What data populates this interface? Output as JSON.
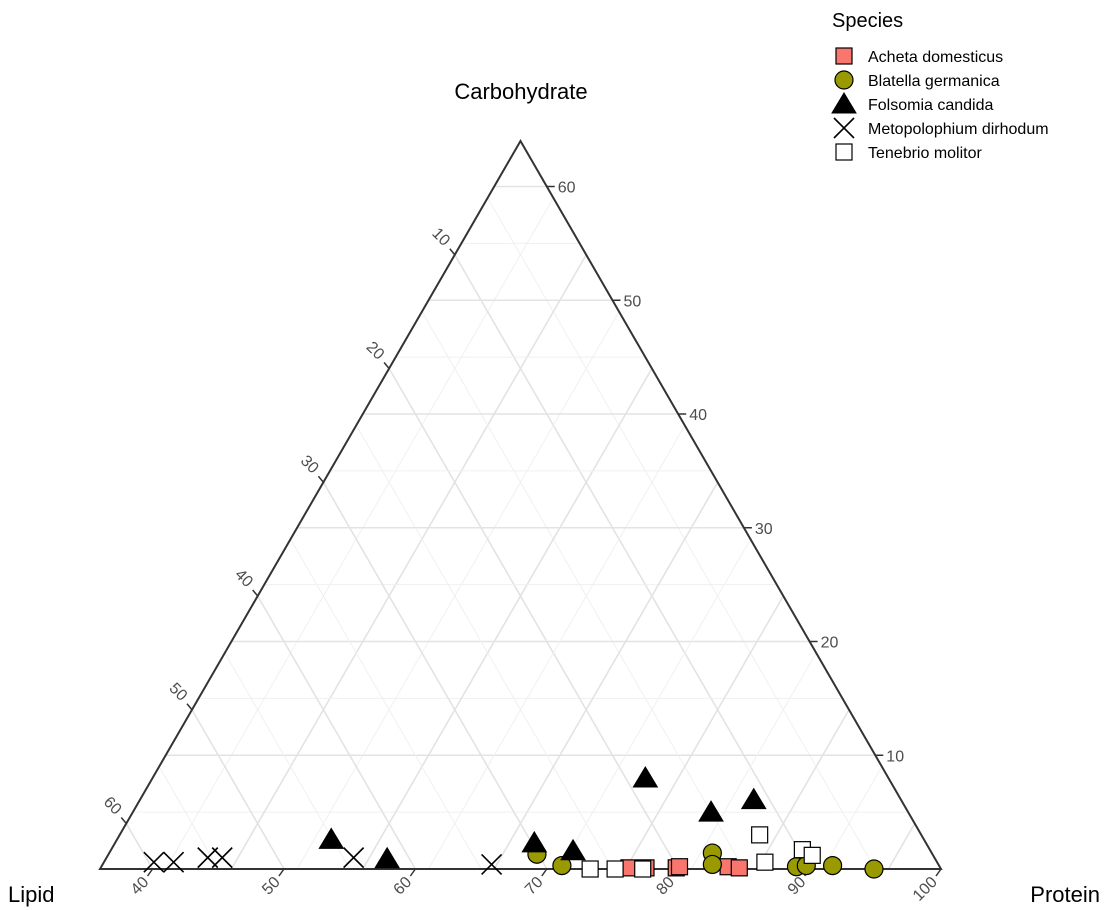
{
  "chart_data": {
    "type": "scatter",
    "subtype": "ternary",
    "axes": {
      "top": {
        "title": "Carbohydrate",
        "ticks": [
          10,
          20,
          30,
          40,
          50,
          60
        ]
      },
      "left": {
        "title": "Lipid",
        "ticks": [
          10,
          20,
          30,
          40,
          50,
          60
        ]
      },
      "right": {
        "title": "Protein",
        "ticks": [
          40,
          50,
          60,
          70,
          80,
          90,
          100
        ]
      }
    },
    "limits": {
      "carbohydrate": [
        0,
        64
      ],
      "lipid": [
        0,
        64
      ],
      "protein": [
        36,
        100
      ]
    },
    "grid": true,
    "legend": {
      "title": "Species",
      "position": "top-right"
    },
    "series": [
      {
        "name": "Acheta domesticus",
        "marker": "square",
        "fill": "#f8766d",
        "stroke": "#000000",
        "points": [
          [
            76.2,
            0.1,
            23.7
          ],
          [
            77.5,
            0.1,
            22.4
          ],
          [
            79.8,
            0.1,
            20.1
          ],
          [
            80.0,
            0.2,
            19.8
          ],
          [
            83.7,
            0.2,
            16.1
          ],
          [
            84.6,
            0.1,
            15.3
          ]
        ]
      },
      {
        "name": "Blatella germanica",
        "marker": "circle",
        "fill": "#999900",
        "stroke": "#000000",
        "points": [
          [
            68.6,
            1.3,
            30.1
          ],
          [
            71.0,
            0.3,
            28.7
          ],
          [
            81.9,
            1.4,
            16.7
          ],
          [
            82.4,
            0.4,
            17.2
          ],
          [
            88.9,
            0.2,
            10.9
          ],
          [
            89.6,
            0.3,
            10.1
          ],
          [
            91.6,
            0.3,
            8.1
          ],
          [
            94.9,
            0.0,
            5.1
          ]
        ]
      },
      {
        "name": "Folsomia candida",
        "marker": "triangle",
        "fill": "#000000",
        "stroke": "#000000",
        "points": [
          [
            52.3,
            2.6,
            45.1
          ],
          [
            57.4,
            0.9,
            41.7
          ],
          [
            67.9,
            2.3,
            29.8
          ],
          [
            71.2,
            1.6,
            27.2
          ],
          [
            73.5,
            8.0,
            18.5
          ],
          [
            80.0,
            5.0,
            15.0
          ],
          [
            82.7,
            6.1,
            11.2
          ]
        ]
      },
      {
        "name": "Metopolophium dirhodum",
        "marker": "x",
        "fill": "none",
        "stroke": "#000000",
        "points": [
          [
            39.8,
            0.6,
            59.6
          ],
          [
            41.3,
            0.6,
            58.1
          ],
          [
            43.7,
            1.0,
            55.3
          ],
          [
            44.8,
            1.0,
            54.2
          ],
          [
            54.8,
            1.0,
            44.2
          ],
          [
            65.6,
            0.4,
            34.0
          ]
        ]
      },
      {
        "name": "Tenebrio molitor",
        "marker": "open-square",
        "fill": "#ffffff",
        "stroke": "#000000",
        "points": [
          [
            73.3,
            0.0,
            26.7
          ],
          [
            75.2,
            0.0,
            24.8
          ],
          [
            77.3,
            0.0,
            22.7
          ],
          [
            84.7,
            3.0,
            12.3
          ],
          [
            86.3,
            0.6,
            13.1
          ],
          [
            88.6,
            1.7,
            9.7
          ],
          [
            89.6,
            1.2,
            9.2
          ]
        ]
      }
    ]
  }
}
